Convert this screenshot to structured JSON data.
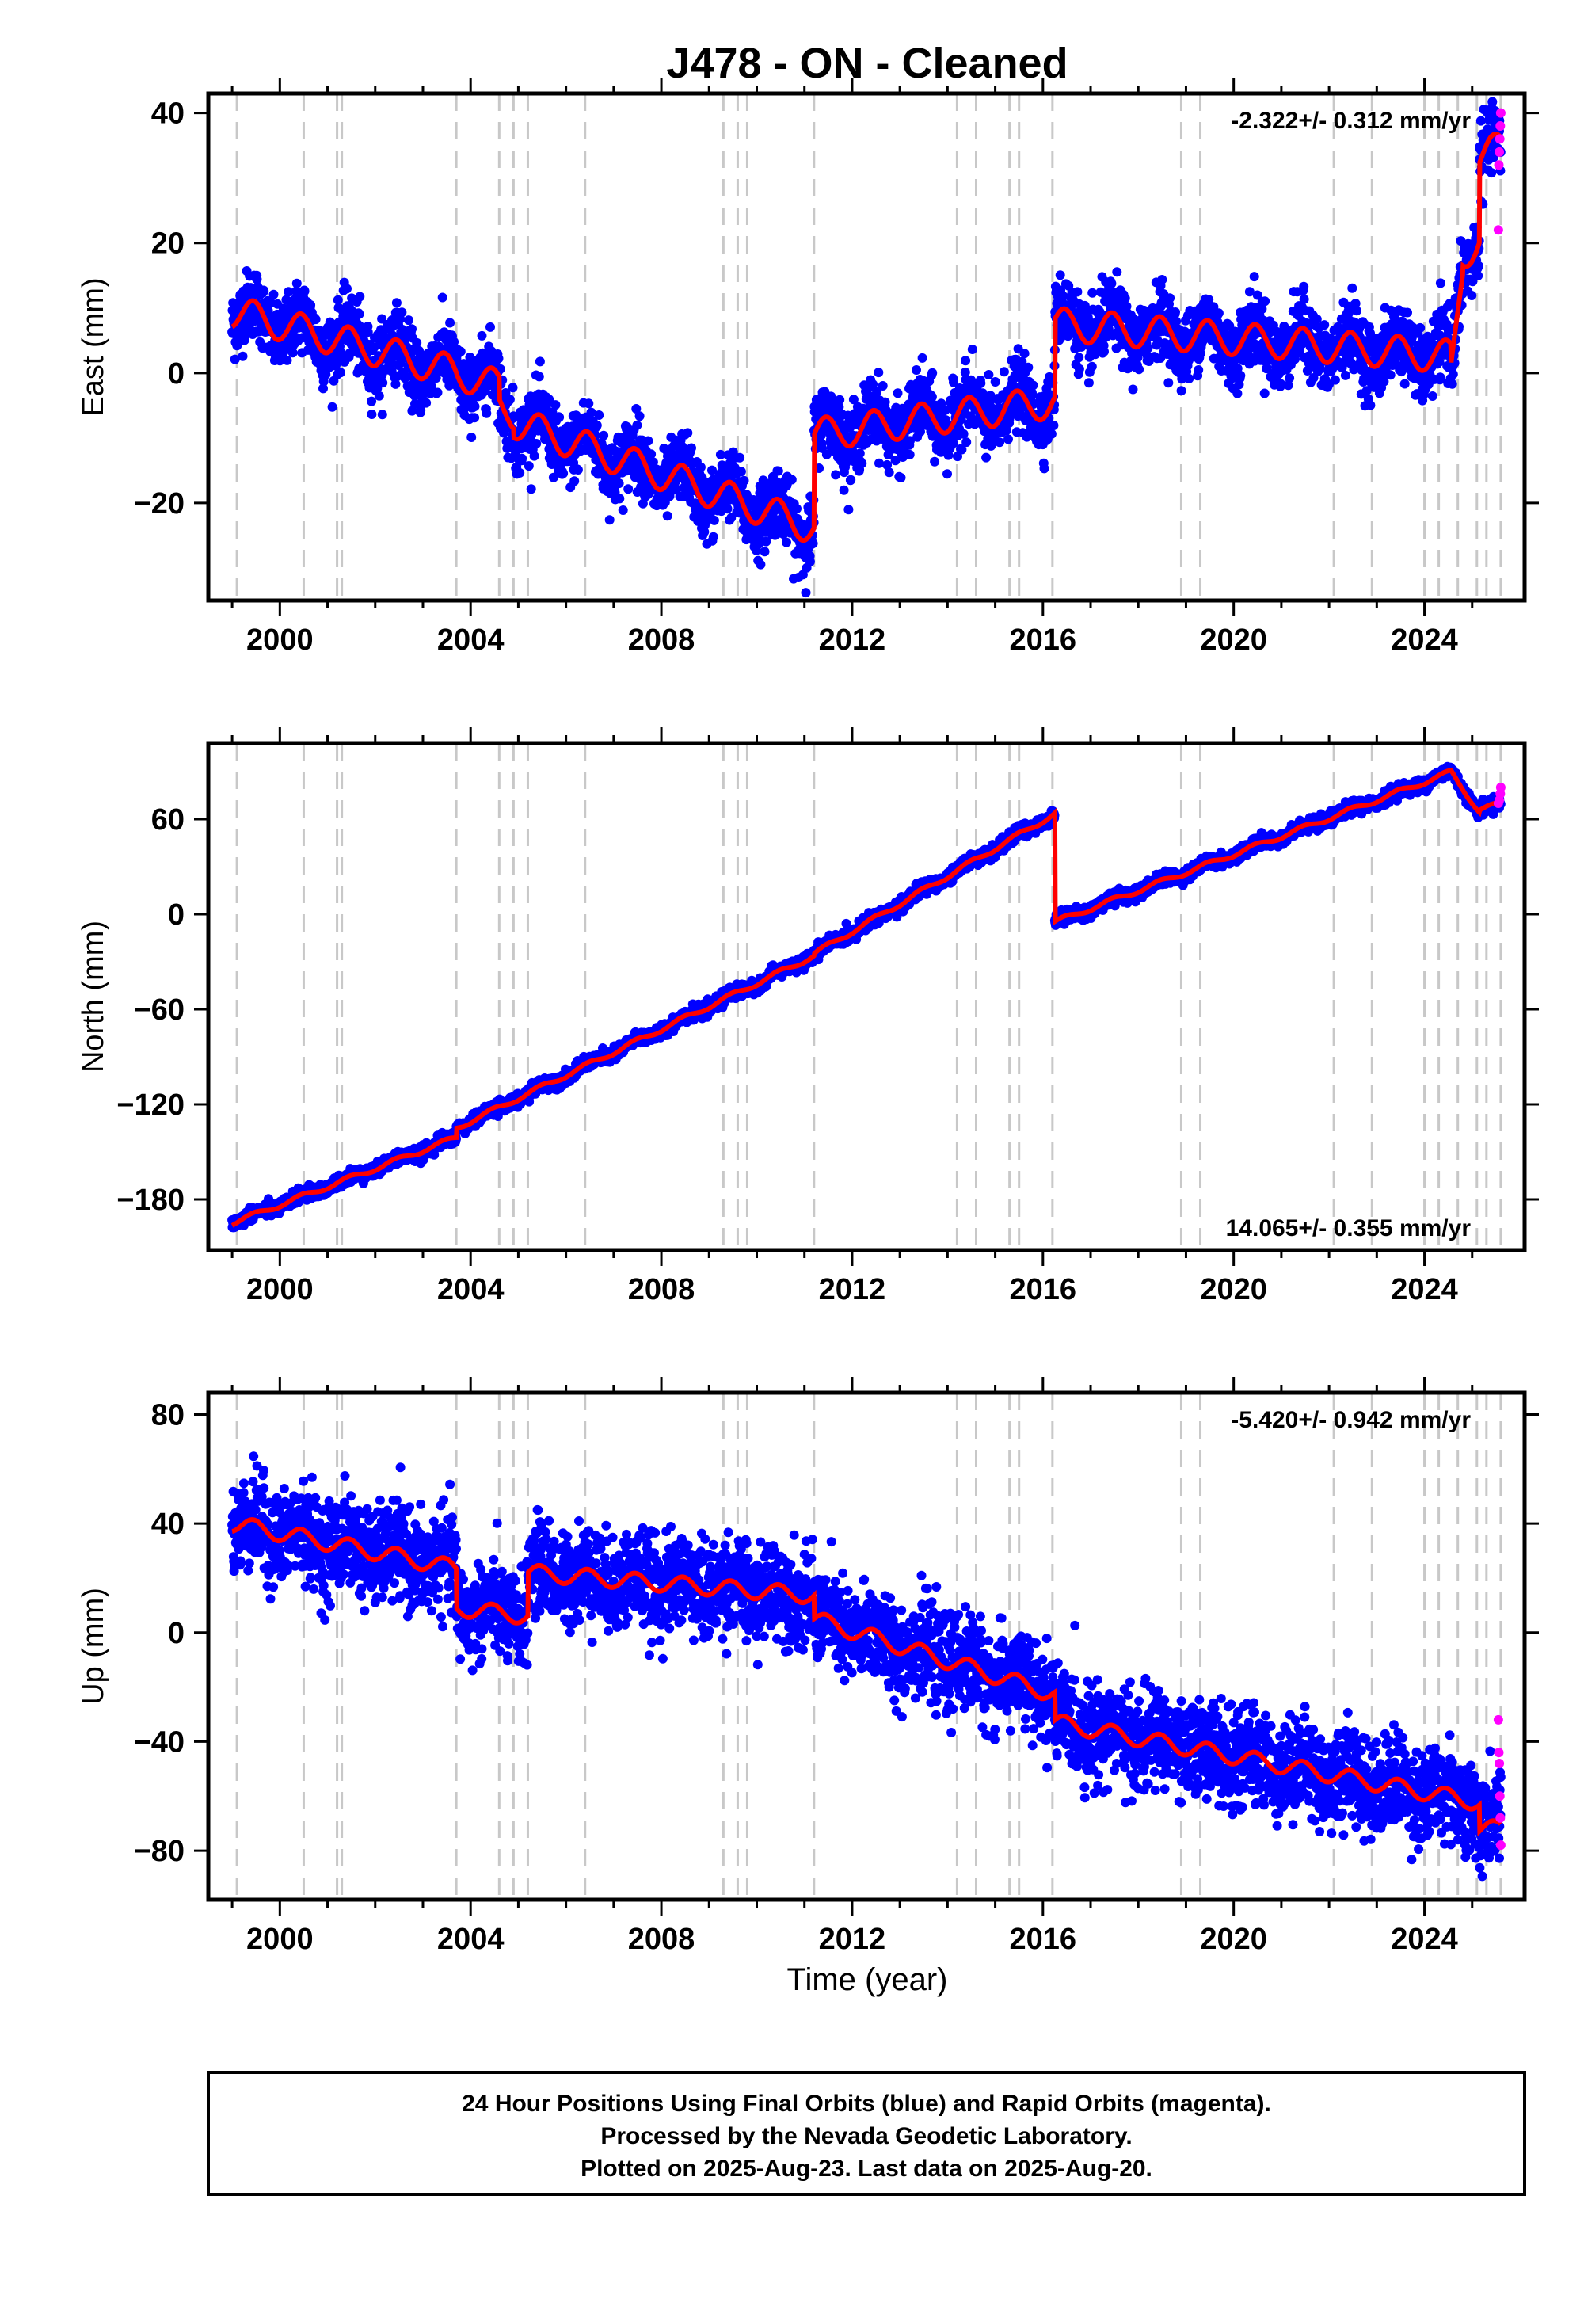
{
  "title": "J478  - ON - Cleaned",
  "xlabel": "Time (year)",
  "footer": {
    "line1": "24 Hour Positions Using Final Orbits (blue) and Rapid Orbits (magenta).",
    "line2": "Processed by the Nevada Geodetic Laboratory.",
    "line3": "Plotted on 2025-Aug-23. Last data on 2025-Aug-20."
  },
  "colors": {
    "final": "#0000ff",
    "rapid": "#ff00ff",
    "model": "#ff0000",
    "events": "#c8c8c8"
  },
  "chart_data": [
    {
      "type": "scatter",
      "component": "East",
      "ylabel": "East (mm)",
      "rate_label": "-2.322+/- 0.312 mm/yr",
      "rate_position": "top-right",
      "xlim": [
        1998.5,
        2026.1
      ],
      "ylim": [
        -35,
        43
      ],
      "xticks": [
        2000,
        2004,
        2008,
        2012,
        2016,
        2020,
        2024
      ],
      "yticks": [
        -20,
        0,
        20,
        40
      ],
      "ytick_labels": [
        "−20",
        "0",
        "20",
        "40"
      ],
      "event_years": [
        1999.1,
        2000.5,
        2001.2,
        2001.3,
        2003.7,
        2004.6,
        2004.9,
        2005.2,
        2006.4,
        2009.3,
        2009.6,
        2009.8,
        2011.2,
        2014.2,
        2014.6,
        2015.3,
        2015.5,
        2016.2,
        2018.9,
        2019.3,
        2022.1,
        2022.9,
        2024.0,
        2024.3,
        2024.7,
        2025.1,
        2025.3,
        2025.6
      ],
      "model": {
        "segments": [
          {
            "t0": 1999.0,
            "t1": 2003.7,
            "y0": 9.5,
            "rate": -2.0
          },
          {
            "t0": 2003.7,
            "t1": 2004.6,
            "y0": 0.0,
            "rate": -2.3
          },
          {
            "t0": 2004.6,
            "t1": 2004.9,
            "y0": -5.5,
            "rate": -2.3
          },
          {
            "t0": 2004.9,
            "t1": 2011.2,
            "y0": -7.5,
            "rate": -2.6
          },
          {
            "t0": 2011.2,
            "t1": 2016.25,
            "y0": -9.5,
            "rate": 1.0
          },
          {
            "t0": 2016.25,
            "t1": 2024.55,
            "y0": 7.5,
            "rate": -0.6
          },
          {
            "t0": 2024.55,
            "t1": 2024.8,
            "y0": -1.0,
            "rate": 70.0
          },
          {
            "t0": 2024.8,
            "t1": 2025.15,
            "y0": 18.0,
            "rate": 8.0
          },
          {
            "t0": 2025.15,
            "t1": 2025.6,
            "y0": 33.0,
            "rate": 4.0
          }
        ],
        "seasonal_amplitude": 2.5,
        "scatter_sd": 2.6
      },
      "rapid": [
        [
          2025.55,
          22
        ],
        [
          2025.56,
          32
        ],
        [
          2025.57,
          34
        ],
        [
          2025.58,
          36
        ],
        [
          2025.59,
          38
        ],
        [
          2025.6,
          40
        ]
      ]
    },
    {
      "type": "scatter",
      "component": "North",
      "ylabel": "North (mm)",
      "rate_label": "14.065+/- 0.355 mm/yr",
      "rate_position": "bottom-right",
      "xlim": [
        1998.5,
        2026.1
      ],
      "ylim": [
        -212,
        108
      ],
      "xticks": [
        2000,
        2004,
        2008,
        2012,
        2016,
        2020,
        2024
      ],
      "yticks": [
        -180,
        -120,
        -60,
        0,
        60
      ],
      "ytick_labels": [
        "−180",
        "−120",
        "−60",
        "0",
        "60"
      ],
      "event_years": [
        1999.1,
        2000.5,
        2001.2,
        2001.3,
        2003.7,
        2004.6,
        2004.9,
        2005.2,
        2006.4,
        2009.3,
        2009.6,
        2009.8,
        2011.2,
        2014.2,
        2014.6,
        2015.3,
        2015.5,
        2016.2,
        2018.9,
        2019.3,
        2022.1,
        2022.9,
        2024.0,
        2024.3,
        2024.7,
        2025.1,
        2025.3,
        2025.6
      ],
      "model": {
        "segments": [
          {
            "t0": 1999.0,
            "t1": 2003.7,
            "y0": -195,
            "rate": 11.5
          },
          {
            "t0": 2003.7,
            "t1": 2011.2,
            "y0": -135,
            "rate": 14.5
          },
          {
            "t0": 2011.2,
            "t1": 2016.25,
            "y0": -25,
            "rate": 17.5
          },
          {
            "t0": 2016.25,
            "t1": 2024.55,
            "y0": -5,
            "rate": 11.4
          },
          {
            "t0": 2024.55,
            "t1": 2025.15,
            "y0": 90,
            "rate": -42.0
          },
          {
            "t0": 2025.15,
            "t1": 2025.6,
            "y0": 66,
            "rate": 8.0
          }
        ],
        "seasonal_amplitude": 1.5,
        "scatter_sd": 2.0
      },
      "rapid": [
        [
          2025.55,
          70
        ],
        [
          2025.57,
          72
        ],
        [
          2025.59,
          76
        ],
        [
          2025.6,
          80
        ]
      ]
    },
    {
      "type": "scatter",
      "component": "Up",
      "ylabel": "Up (mm)",
      "rate_label": "-5.420+/- 0.942 mm/yr",
      "rate_position": "top-right",
      "xlim": [
        1998.5,
        2026.1
      ],
      "ylim": [
        -98,
        88
      ],
      "xticks": [
        2000,
        2004,
        2008,
        2012,
        2016,
        2020,
        2024
      ],
      "yticks": [
        -80,
        -40,
        0,
        40,
        80
      ],
      "ytick_labels": [
        "−80",
        "−40",
        "0",
        "40",
        "80"
      ],
      "event_years": [
        1999.1,
        2000.5,
        2001.2,
        2001.3,
        2003.7,
        2004.6,
        2004.9,
        2005.2,
        2006.4,
        2009.3,
        2009.6,
        2009.8,
        2011.2,
        2014.2,
        2014.6,
        2015.3,
        2015.5,
        2016.2,
        2018.9,
        2019.3,
        2022.1,
        2022.9,
        2024.0,
        2024.3,
        2024.7,
        2025.1,
        2025.3,
        2025.6
      ],
      "model": {
        "segments": [
          {
            "t0": 1999.0,
            "t1": 2003.7,
            "y0": 40,
            "rate": -3.5
          },
          {
            "t0": 2003.7,
            "t1": 2005.2,
            "y0": 9,
            "rate": -2.0
          },
          {
            "t0": 2005.2,
            "t1": 2011.2,
            "y0": 22,
            "rate": -1.4
          },
          {
            "t0": 2011.2,
            "t1": 2016.25,
            "y0": 5,
            "rate": -5.5
          },
          {
            "t0": 2016.25,
            "t1": 2025.15,
            "y0": -33,
            "rate": -3.3
          },
          {
            "t0": 2025.15,
            "t1": 2025.6,
            "y0": -72,
            "rate": 0.0
          }
        ],
        "seasonal_amplitude": 3.0,
        "scatter_sd": 8.5
      },
      "rapid": [
        [
          2025.55,
          -32
        ],
        [
          2025.56,
          -44
        ],
        [
          2025.57,
          -48
        ],
        [
          2025.58,
          -60
        ],
        [
          2025.59,
          -68
        ],
        [
          2025.6,
          -78
        ]
      ]
    }
  ]
}
